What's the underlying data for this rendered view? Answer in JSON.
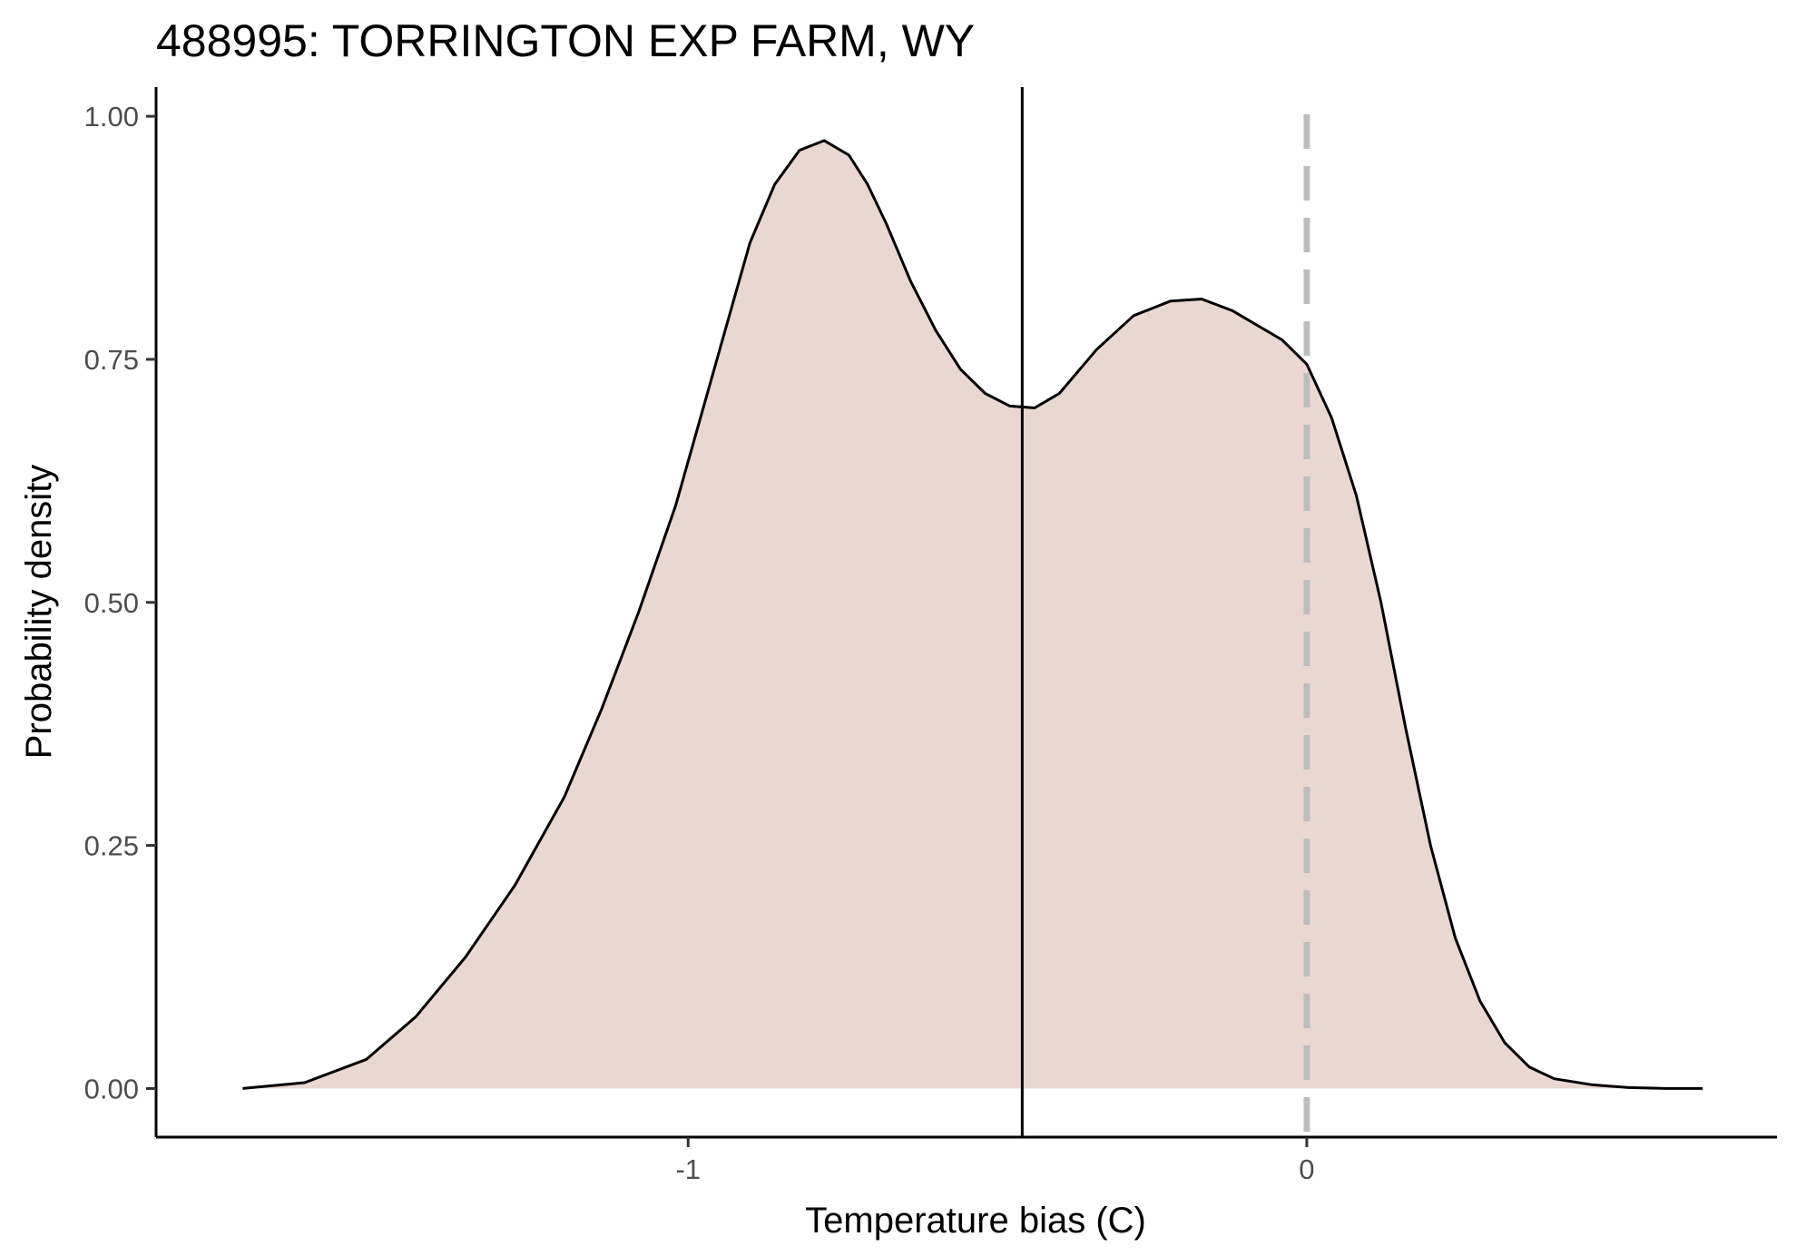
{
  "chart_data": {
    "type": "area",
    "title": "488995: TORRINGTON EXP FARM, WY",
    "xlabel": "Temperature bias (C)",
    "ylabel": "Probability density",
    "xlim": [
      -1.86,
      0.76
    ],
    "ylim": [
      -0.05,
      1.03
    ],
    "x_ticks": [
      -1,
      0
    ],
    "x_tick_labels": [
      "-1",
      "0"
    ],
    "y_ticks": [
      0,
      0.25,
      0.5,
      0.75,
      1.0
    ],
    "y_tick_labels": [
      "0.00",
      "0.25",
      "0.50",
      "0.75",
      "1.00"
    ],
    "grid": false,
    "legend": "none",
    "fill_color": "#e9d7d2",
    "line_color": "#000000",
    "mean_line": {
      "x": -0.46,
      "color": "#000000",
      "style": "solid"
    },
    "zero_line": {
      "x": 0,
      "color": "#bdbdbd",
      "style": "dashed"
    },
    "series": [
      {
        "x": [
          -1.72,
          -1.62,
          -1.52,
          -1.44,
          -1.36,
          -1.28,
          -1.2,
          -1.14,
          -1.08,
          -1.02,
          -0.98,
          -0.94,
          -0.9,
          -0.86,
          -0.82,
          -0.78,
          -0.74,
          -0.71,
          -0.68,
          -0.64,
          -0.6,
          -0.56,
          -0.52,
          -0.48,
          -0.44,
          -0.4,
          -0.34,
          -0.28,
          -0.22,
          -0.17,
          -0.12,
          -0.08,
          -0.04,
          0,
          0.04,
          0.08,
          0.12,
          0.16,
          0.2,
          0.24,
          0.28,
          0.32,
          0.36,
          0.4,
          0.46,
          0.52,
          0.58,
          0.64
        ],
        "y": [
          0.0,
          0.006,
          0.03,
          0.074,
          0.135,
          0.209,
          0.3,
          0.39,
          0.49,
          0.6,
          0.69,
          0.78,
          0.87,
          0.93,
          0.965,
          0.975,
          0.96,
          0.93,
          0.89,
          0.83,
          0.78,
          0.74,
          0.715,
          0.702,
          0.7,
          0.715,
          0.76,
          0.795,
          0.81,
          0.812,
          0.8,
          0.785,
          0.77,
          0.745,
          0.69,
          0.61,
          0.5,
          0.37,
          0.25,
          0.155,
          0.09,
          0.047,
          0.022,
          0.01,
          0.004,
          0.001,
          0.0,
          0.0
        ]
      }
    ]
  }
}
